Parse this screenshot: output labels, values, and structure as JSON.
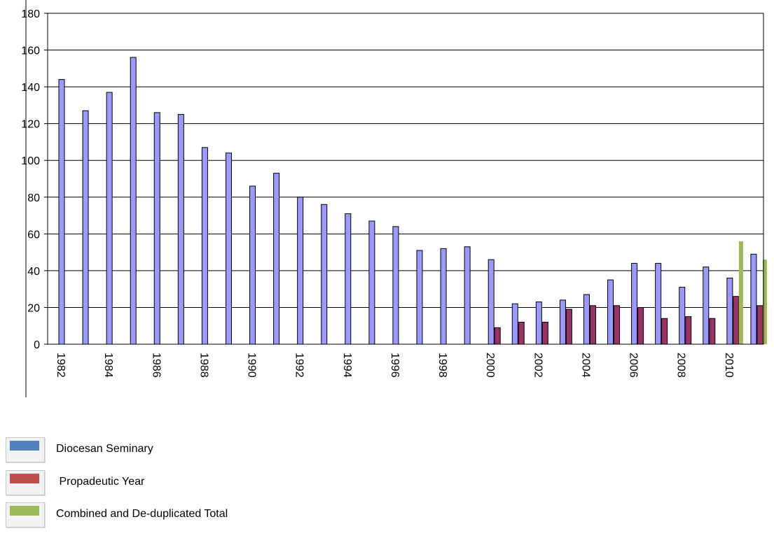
{
  "chart_data": {
    "type": "bar",
    "title": "",
    "xlabel": "",
    "ylabel": "",
    "ylim": [
      0,
      180
    ],
    "yticks": [
      0,
      20,
      40,
      60,
      80,
      100,
      120,
      140,
      160,
      180
    ],
    "grid": true,
    "legend_position": "bottom-left",
    "categories": [
      1982,
      1983,
      1984,
      1985,
      1986,
      1987,
      1988,
      1989,
      1990,
      1991,
      1992,
      1993,
      1994,
      1995,
      1996,
      1997,
      1998,
      1999,
      2000,
      2001,
      2002,
      2003,
      2004,
      2005,
      2006,
      2007,
      2008,
      2009,
      2010,
      2011
    ],
    "x_tick_labels": [
      "1982",
      "1984",
      "1986",
      "1988",
      "1990",
      "1992",
      "1994",
      "1996",
      "1998",
      "2000",
      "2002",
      "2004",
      "2006",
      "2008",
      "2010"
    ],
    "series": [
      {
        "name": "Diocesan Seminary",
        "color": "#9999ff",
        "legend_color": "#4f81bd",
        "values": [
          144,
          127,
          137,
          156,
          126,
          125,
          107,
          104,
          86,
          93,
          80,
          76,
          71,
          67,
          64,
          51,
          52,
          53,
          46,
          22,
          23,
          24,
          27,
          35,
          44,
          44,
          31,
          42,
          36,
          49
        ]
      },
      {
        "name": " Propadeutic Year",
        "color": "#993366",
        "legend_color": "#c0504d",
        "values": [
          null,
          null,
          null,
          null,
          null,
          null,
          null,
          null,
          null,
          null,
          null,
          null,
          null,
          null,
          null,
          null,
          null,
          null,
          9,
          12,
          12,
          19,
          21,
          21,
          20,
          14,
          15,
          14,
          26,
          21
        ]
      },
      {
        "name": "Combined and De-duplicated Total",
        "color": "#9bbb59",
        "legend_color": "#9bbb59",
        "values": [
          null,
          null,
          null,
          null,
          null,
          null,
          null,
          null,
          null,
          null,
          null,
          null,
          null,
          null,
          null,
          null,
          null,
          null,
          null,
          null,
          null,
          null,
          null,
          null,
          null,
          null,
          null,
          null,
          56,
          46
        ]
      }
    ]
  }
}
